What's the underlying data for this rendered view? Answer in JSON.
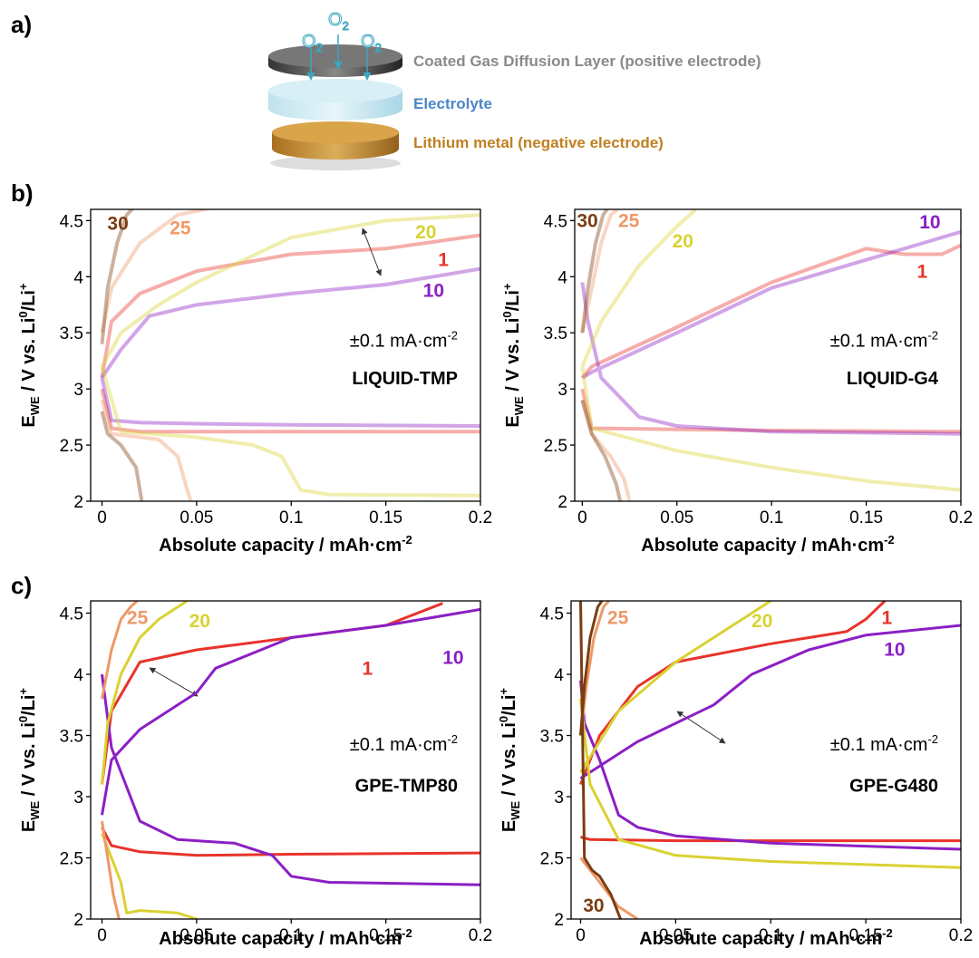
{
  "panel_labels": [
    "a)",
    "b)",
    "c)"
  ],
  "diagram": {
    "o2": {
      "text": "O",
      "sub": "2"
    },
    "layers": [
      "Coated Gas Diffusion Layer (positive electrode)",
      "Electrolyte",
      "Lithium metal (negative electrode)"
    ]
  },
  "chart_data": [
    {
      "type": "line",
      "xlim": [
        -0.006,
        0.2
      ],
      "ylim": [
        2,
        4.6
      ],
      "xticks": [
        0,
        0.05,
        0.1,
        0.15,
        0.2
      ],
      "yticks": [
        2,
        2.5,
        3,
        3.5,
        4,
        4.5
      ],
      "xlabel": {
        "text": "Absolute capacity / mAh·cm",
        "sup": "-2"
      },
      "ylabel": [
        "E",
        "WE",
        " / V vs. Li",
        "0",
        "/Li",
        "+"
      ],
      "annotation": {
        "text": "±0.1 mA·cm",
        "sup": "-2"
      },
      "sample": "LIQUID-TMP",
      "line_opacity": 0.4,
      "series": [
        {
          "name": "1",
          "color": "#e8332b",
          "x": [
            0,
            0.005,
            0.02,
            0.05,
            0.1,
            0.15,
            0.2,
            null,
            0,
            0.005,
            0.02,
            0.05,
            0.1,
            0.15,
            0.2
          ],
          "values": [
            3.0,
            2.65,
            2.62,
            2.62,
            2.62,
            2.62,
            2.62,
            null,
            3.1,
            3.6,
            3.85,
            4.05,
            4.2,
            4.25,
            4.37
          ]
        },
        {
          "name": "10",
          "color": "#8b1fc4",
          "x": [
            0,
            0.005,
            0.02,
            0.05,
            0.1,
            0.2,
            null,
            0,
            0.01,
            0.025,
            0.05,
            0.1,
            0.15,
            0.2
          ],
          "values": [
            3.1,
            2.72,
            2.7,
            2.69,
            2.68,
            2.67,
            null,
            3.1,
            3.35,
            3.65,
            3.75,
            3.85,
            3.93,
            4.07
          ]
        },
        {
          "name": "20",
          "color": "#d9d232",
          "x": [
            0,
            0.01,
            0.05,
            0.08,
            0.095,
            0.105,
            0.12,
            0.2,
            null,
            0,
            0.01,
            0.03,
            0.05,
            0.1,
            0.15,
            0.2
          ],
          "values": [
            3.2,
            2.62,
            2.57,
            2.5,
            2.4,
            2.1,
            2.06,
            2.05,
            null,
            3.2,
            3.5,
            3.75,
            3.95,
            4.35,
            4.5,
            4.55
          ]
        },
        {
          "name": "25",
          "color": "#ee9966",
          "x": [
            0,
            0.005,
            0.03,
            0.04,
            0.045,
            0.047,
            null,
            0,
            0.005,
            0.02,
            0.04,
            0.06
          ],
          "values": [
            2.9,
            2.6,
            2.55,
            2.4,
            2.1,
            2.0,
            null,
            3.5,
            3.9,
            4.3,
            4.55,
            4.62
          ]
        },
        {
          "name": "30",
          "color": "#7b3d12",
          "x": [
            0,
            0.003,
            0.01,
            0.018,
            0.021,
            null,
            0,
            0.003,
            0.008,
            0.013,
            0.017
          ],
          "values": [
            2.8,
            2.6,
            2.5,
            2.3,
            2.0,
            null,
            3.4,
            3.9,
            4.3,
            4.55,
            4.62
          ]
        }
      ]
    },
    {
      "type": "line",
      "xlim": [
        -0.004,
        0.2
      ],
      "ylim": [
        2,
        4.6
      ],
      "xticks": [
        0,
        0.05,
        0.1,
        0.15,
        0.2
      ],
      "yticks": [
        2,
        2.5,
        3,
        3.5,
        4,
        4.5
      ],
      "xlabel": {
        "text": "Absolute capacity / mAh·cm",
        "sup": "-2"
      },
      "ylabel": [
        "E",
        "WE",
        " / V vs. Li",
        "0",
        "/Li",
        "+"
      ],
      "annotation": {
        "text": "±0.1 mA·cm",
        "sup": "-2"
      },
      "sample": "LIQUID-G4",
      "line_opacity": 0.4,
      "series": [
        {
          "name": "1",
          "color": "#e8332b",
          "x": [
            0,
            0.005,
            0.05,
            0.1,
            0.2,
            null,
            0,
            0.005,
            0.05,
            0.1,
            0.15,
            0.17,
            0.19,
            0.2
          ],
          "values": [
            3.0,
            2.65,
            2.64,
            2.63,
            2.62,
            null,
            3.1,
            3.2,
            3.55,
            3.95,
            4.25,
            4.2,
            4.2,
            4.28
          ]
        },
        {
          "name": "10",
          "color": "#8b1fc4",
          "x": [
            0,
            0.003,
            0.01,
            0.03,
            0.05,
            0.1,
            0.2,
            null,
            0,
            0.005,
            0.05,
            0.1,
            0.15,
            0.2
          ],
          "values": [
            3.95,
            3.6,
            3.1,
            2.75,
            2.67,
            2.62,
            2.6,
            null,
            3.1,
            3.15,
            3.5,
            3.9,
            4.15,
            4.4
          ]
        },
        {
          "name": "20",
          "color": "#d9d232",
          "x": [
            0,
            0.005,
            0.05,
            0.1,
            0.15,
            0.2,
            null,
            0,
            0.01,
            0.03,
            0.05,
            0.06
          ],
          "values": [
            3.2,
            2.65,
            2.45,
            2.3,
            2.18,
            2.1,
            null,
            3.2,
            3.6,
            4.1,
            4.45,
            4.6
          ]
        },
        {
          "name": "25",
          "color": "#ee9966",
          "x": [
            0,
            0.005,
            0.015,
            0.022,
            0.025,
            null,
            0,
            0.005,
            0.01,
            0.015,
            0.02
          ],
          "values": [
            2.9,
            2.6,
            2.4,
            2.2,
            2.0,
            null,
            3.5,
            3.9,
            4.3,
            4.55,
            4.62
          ]
        },
        {
          "name": "30",
          "color": "#7b3d12",
          "x": [
            0,
            0.005,
            0.012,
            0.018,
            0.02,
            null,
            0,
            0.003,
            0.007,
            0.011,
            0.014
          ],
          "values": [
            2.9,
            2.6,
            2.4,
            2.15,
            2.0,
            null,
            3.5,
            3.9,
            4.3,
            4.55,
            4.62
          ]
        }
      ]
    },
    {
      "type": "line",
      "xlim": [
        -0.006,
        0.2
      ],
      "ylim": [
        2,
        4.6
      ],
      "xticks": [
        0,
        0.05,
        0.1,
        0.15,
        0.2
      ],
      "yticks": [
        2,
        2.5,
        3,
        3.5,
        4,
        4.5
      ],
      "xlabel": {
        "text": "Absolute capacity / mAh·cm",
        "sup": "-2"
      },
      "ylabel": [
        "E",
        "WE",
        " / V vs. Li",
        "0",
        "/Li",
        "+"
      ],
      "annotation": {
        "text": "±0.1 mA·cm",
        "sup": "-2"
      },
      "sample": "GPE-TMP80",
      "line_opacity": 1,
      "series": [
        {
          "name": "1",
          "color": "#e8332b",
          "x": [
            0,
            0.005,
            0.02,
            0.05,
            0.1,
            0.2,
            null,
            0,
            0.005,
            0.02,
            0.05,
            0.1,
            0.15,
            0.18
          ],
          "values": [
            2.75,
            2.6,
            2.55,
            2.52,
            2.53,
            2.54,
            null,
            3.1,
            3.7,
            4.1,
            4.2,
            4.3,
            4.4,
            4.58
          ]
        },
        {
          "name": "10",
          "color": "#8b1fc4",
          "x": [
            0,
            0.005,
            0.02,
            0.04,
            0.07,
            0.09,
            0.1,
            0.12,
            0.2,
            null,
            0,
            0.005,
            0.02,
            0.04,
            0.05,
            0.06,
            0.1,
            0.15,
            0.2
          ],
          "values": [
            4.0,
            3.4,
            2.8,
            2.65,
            2.62,
            2.52,
            2.35,
            2.3,
            2.28,
            null,
            2.85,
            3.3,
            3.55,
            3.75,
            3.85,
            4.05,
            4.3,
            4.4,
            4.53
          ]
        },
        {
          "name": "20",
          "color": "#d9d232",
          "x": [
            0,
            0.005,
            0.01,
            0.013,
            0.02,
            0.04,
            0.05,
            null,
            0,
            0.003,
            0.01,
            0.02,
            0.03,
            0.045
          ],
          "values": [
            2.7,
            2.5,
            2.3,
            2.05,
            2.07,
            2.05,
            2.0,
            null,
            3.1,
            3.6,
            4.0,
            4.3,
            4.45,
            4.6
          ]
        },
        {
          "name": "25",
          "color": "#ee9966",
          "x": [
            0,
            0.003,
            0.006,
            0.009,
            null,
            0,
            0.005,
            0.01,
            0.015,
            0.02
          ],
          "values": [
            2.8,
            2.5,
            2.2,
            2.0,
            null,
            3.8,
            4.2,
            4.45,
            4.55,
            4.62
          ]
        }
      ]
    },
    {
      "type": "line",
      "xlim": [
        -0.005,
        0.2
      ],
      "ylim": [
        2,
        4.6
      ],
      "xticks": [
        0,
        0.05,
        0.1,
        0.15,
        0.2
      ],
      "yticks": [
        2,
        2.5,
        3,
        3.5,
        4,
        4.5
      ],
      "xlabel": {
        "text": "Absolute capacity / mAh·cm",
        "sup": "-2"
      },
      "ylabel": [
        "E",
        "WE",
        " / V vs. Li",
        "0",
        "/Li",
        "+"
      ],
      "annotation": {
        "text": "±0.1 mA·cm",
        "sup": "-2"
      },
      "sample": "GPE-G480",
      "line_opacity": 1,
      "series": [
        {
          "name": "1",
          "color": "#e8332b",
          "x": [
            0,
            0.005,
            0.05,
            0.1,
            0.2,
            null,
            0,
            0.01,
            0.03,
            0.05,
            0.1,
            0.14,
            0.15,
            0.16
          ],
          "values": [
            2.67,
            2.65,
            2.64,
            2.64,
            2.64,
            null,
            3.1,
            3.5,
            3.9,
            4.1,
            4.25,
            4.35,
            4.45,
            4.6
          ]
        },
        {
          "name": "10",
          "color": "#8b1fc4",
          "x": [
            0,
            0.002,
            0.01,
            0.02,
            0.03,
            0.05,
            0.1,
            0.2,
            null,
            0,
            0.01,
            0.03,
            0.05,
            0.07,
            0.09,
            0.12,
            0.15,
            0.2
          ],
          "values": [
            3.95,
            3.6,
            3.3,
            2.85,
            2.75,
            2.68,
            2.62,
            2.57,
            null,
            3.15,
            3.25,
            3.45,
            3.6,
            3.75,
            4.0,
            4.2,
            4.32,
            4.4
          ]
        },
        {
          "name": "20",
          "color": "#d9d232",
          "x": [
            0,
            0.005,
            0.02,
            0.05,
            0.1,
            0.2,
            null,
            0,
            0.02,
            0.05,
            0.08,
            0.1
          ],
          "values": [
            3.8,
            3.1,
            2.65,
            2.52,
            2.47,
            2.42,
            null,
            3.2,
            3.7,
            4.1,
            4.4,
            4.6
          ]
        },
        {
          "name": "25",
          "color": "#ee9966",
          "x": [
            0,
            0.005,
            0.01,
            0.02,
            0.03,
            null,
            0,
            0.003,
            0.007,
            0.012,
            0.016
          ],
          "values": [
            2.5,
            2.4,
            2.3,
            2.1,
            2.0,
            null,
            3.5,
            3.9,
            4.3,
            4.55,
            4.62
          ]
        },
        {
          "name": "30",
          "color": "#7b3d12",
          "x": [
            0,
            0.002,
            0.006,
            0.01,
            0.016,
            0.021,
            null,
            0,
            0.002,
            0.005,
            0.009,
            0.012
          ],
          "values": [
            4.6,
            2.5,
            2.4,
            2.35,
            2.2,
            2.0,
            null,
            3.5,
            3.9,
            4.3,
            4.55,
            4.62
          ]
        }
      ]
    }
  ]
}
